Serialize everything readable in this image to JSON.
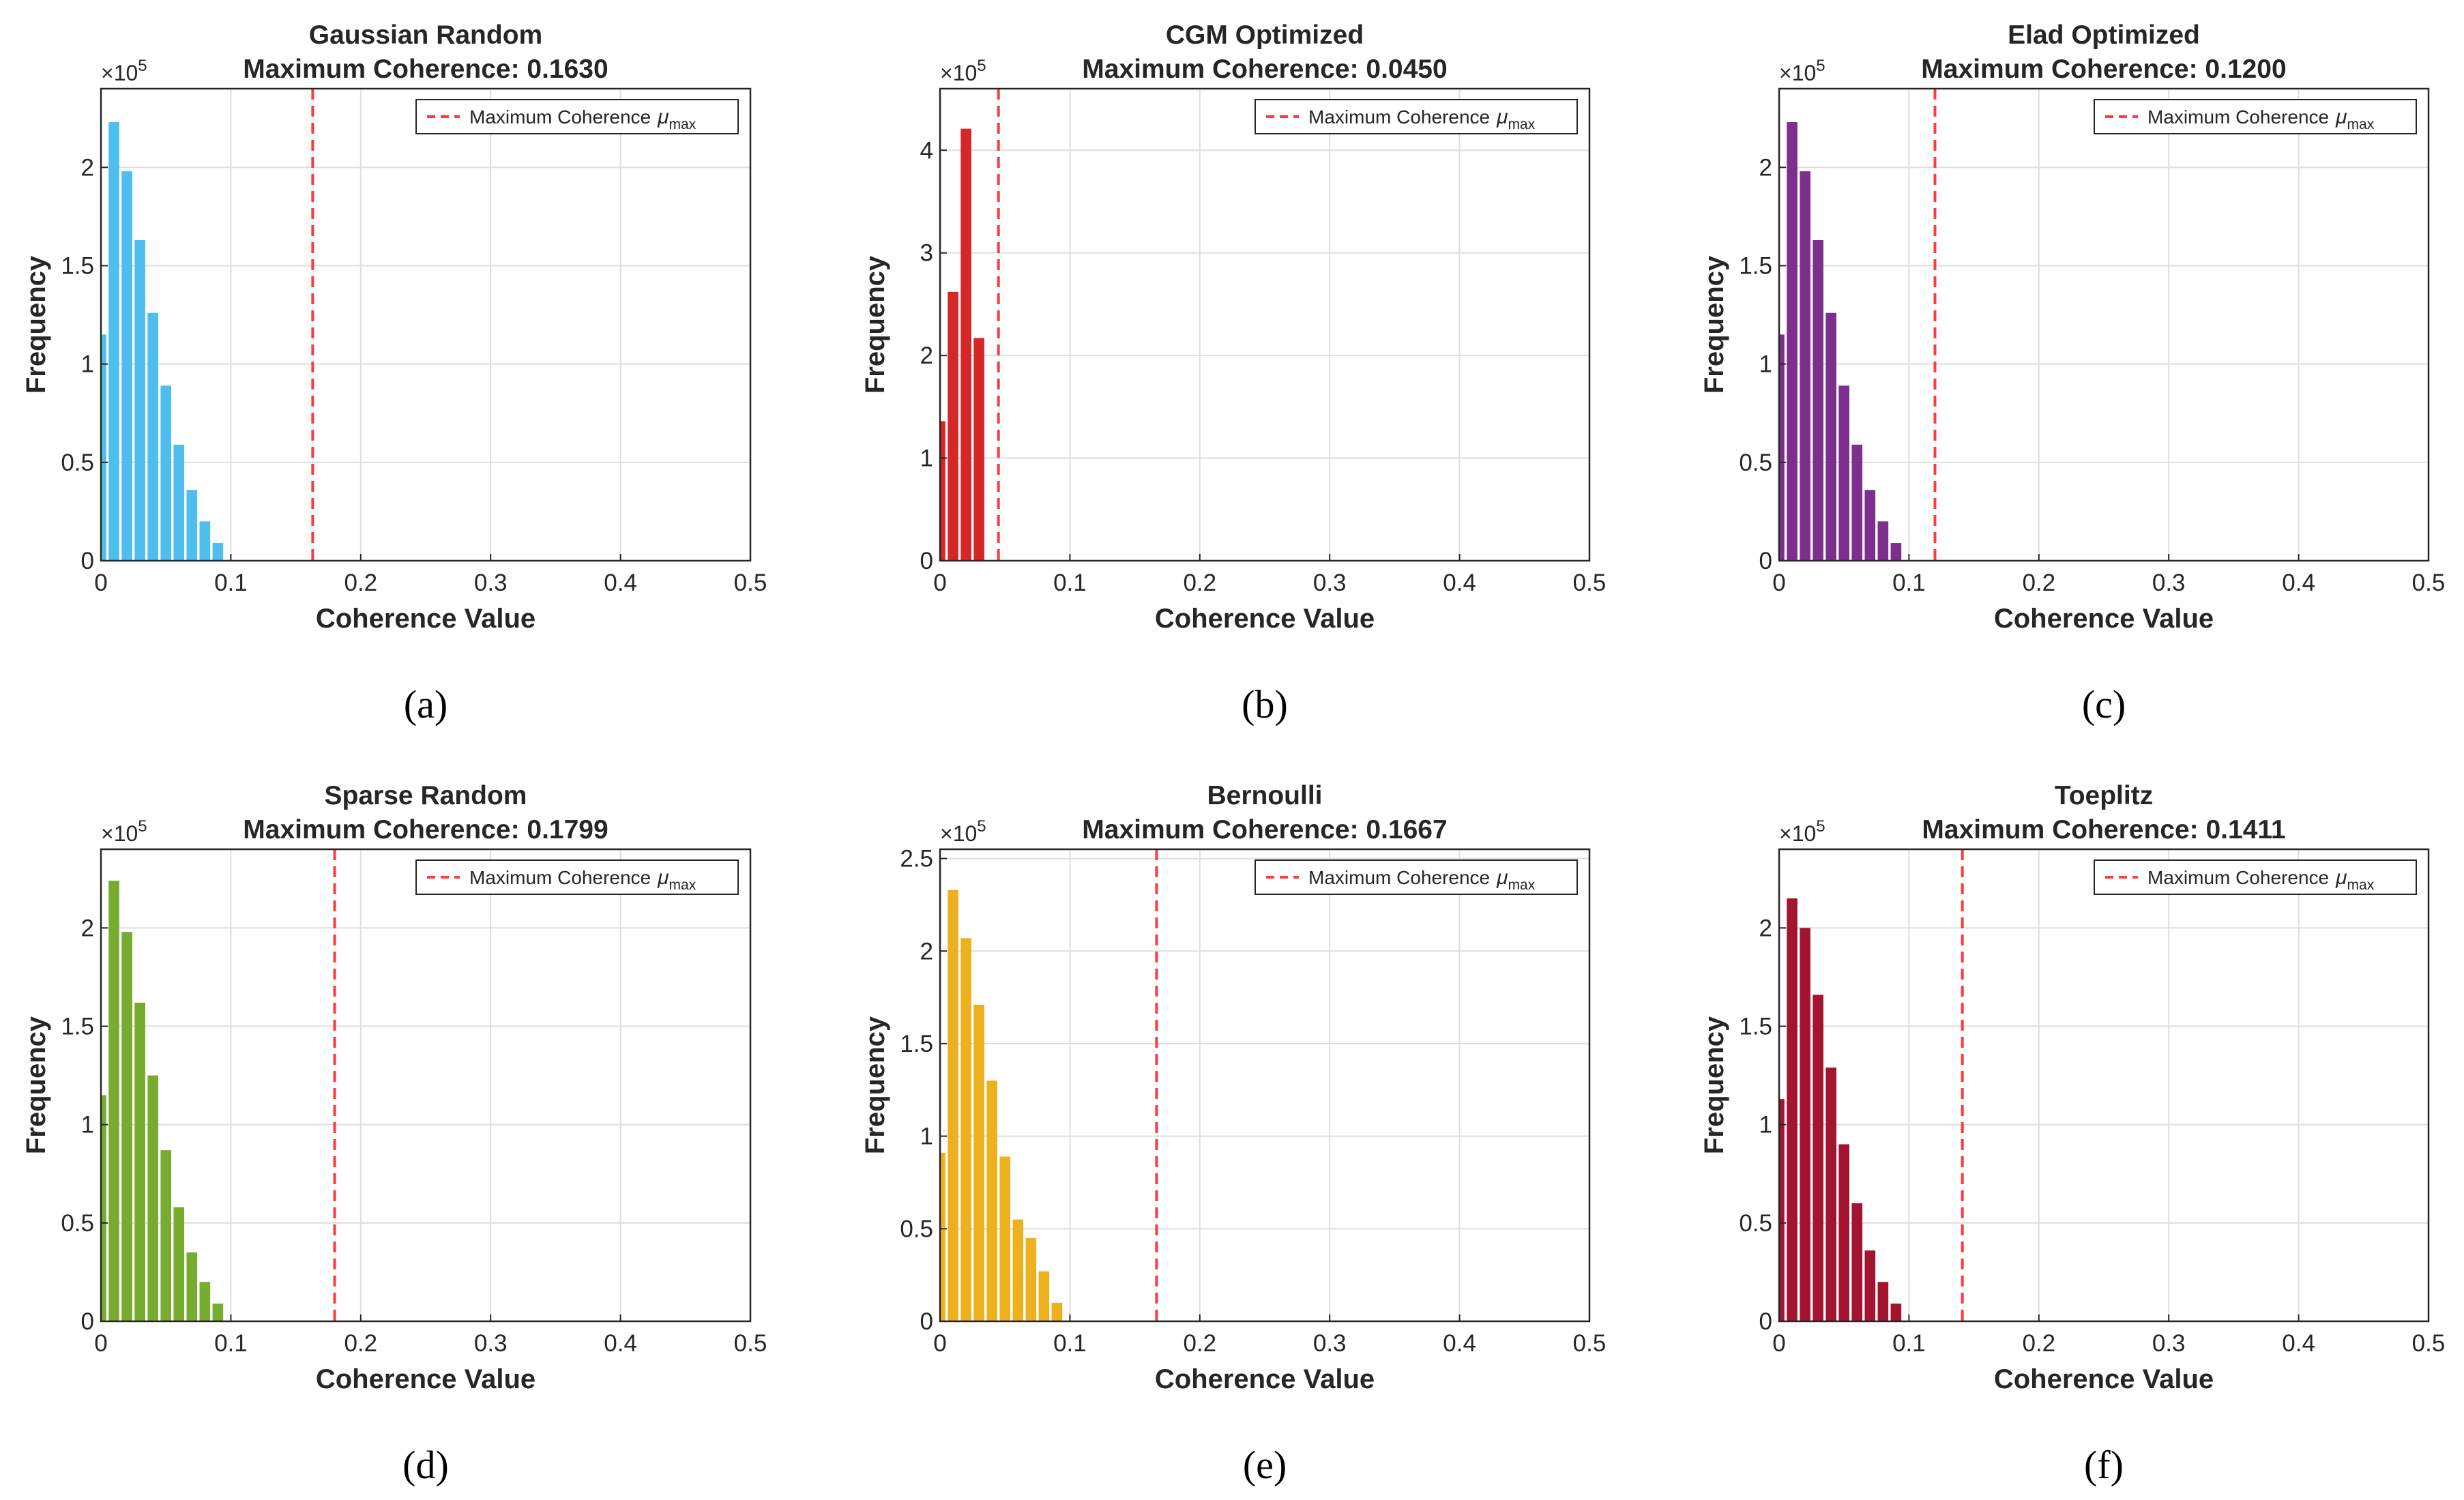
{
  "chart_data": [
    {
      "type": "bar",
      "title": "Gaussian Random",
      "subtitle": "Maximum Coherence: 0.1630",
      "xlabel": "Coherence Value",
      "ylabel": "Frequency",
      "y_exponent": "×10",
      "y_exponent_power": "5",
      "xlim": [
        0,
        0.5
      ],
      "ylim": [
        0,
        2.4
      ],
      "xticks": [
        0,
        0.1,
        0.2,
        0.3,
        0.4,
        0.5
      ],
      "xtick_labels": [
        "0",
        "0.1",
        "0.2",
        "0.3",
        "0.4",
        "0.5"
      ],
      "yticks": [
        0,
        0.5,
        1,
        1.5,
        2
      ],
      "ytick_labels": [
        "0",
        "0.5",
        "1",
        "1.5",
        "2"
      ],
      "bin_width": 0.01,
      "bin_centers": [
        0.0,
        0.01,
        0.02,
        0.03,
        0.04,
        0.05,
        0.06,
        0.07,
        0.08,
        0.09
      ],
      "values": [
        1.15,
        2.23,
        1.98,
        1.63,
        1.26,
        0.89,
        0.59,
        0.36,
        0.2,
        0.09
      ],
      "color": "#4DBEEE",
      "max_coherence": 0.163,
      "legend": "Maximum Coherence μmax",
      "legend_main": "Maximum  Coherence",
      "legend_mu": "μ",
      "legend_sub": "max",
      "legend_loc": "top-right",
      "grid": true,
      "caption": "(a)"
    },
    {
      "type": "bar",
      "title": "CGM Optimized",
      "subtitle": "Maximum Coherence: 0.0450",
      "xlabel": "Coherence Value",
      "ylabel": "Frequency",
      "y_exponent": "×10",
      "y_exponent_power": "5",
      "xlim": [
        0,
        0.5
      ],
      "ylim": [
        0,
        4.6
      ],
      "xticks": [
        0,
        0.1,
        0.2,
        0.3,
        0.4,
        0.5
      ],
      "xtick_labels": [
        "0",
        "0.1",
        "0.2",
        "0.3",
        "0.4",
        "0.5"
      ],
      "yticks": [
        0,
        1,
        2,
        3,
        4
      ],
      "ytick_labels": [
        "0",
        "1",
        "2",
        "3",
        "4"
      ],
      "bin_width": 0.01,
      "bin_centers": [
        0.0,
        0.01,
        0.02,
        0.03
      ],
      "values": [
        1.36,
        2.62,
        4.21,
        2.17
      ],
      "color": "#D62728",
      "max_coherence": 0.045,
      "legend": "Maximum Coherence μmax",
      "legend_main": "Maximum  Coherence",
      "legend_mu": "μ",
      "legend_sub": "max",
      "legend_loc": "top-right",
      "grid": true,
      "caption": "(b)"
    },
    {
      "type": "bar",
      "title": "Elad Optimized",
      "subtitle": "Maximum Coherence: 0.1200",
      "xlabel": "Coherence Value",
      "ylabel": "Frequency",
      "y_exponent": "×10",
      "y_exponent_power": "5",
      "xlim": [
        0,
        0.5
      ],
      "ylim": [
        0,
        2.4
      ],
      "xticks": [
        0,
        0.1,
        0.2,
        0.3,
        0.4,
        0.5
      ],
      "xtick_labels": [
        "0",
        "0.1",
        "0.2",
        "0.3",
        "0.4",
        "0.5"
      ],
      "yticks": [
        0,
        0.5,
        1,
        1.5,
        2
      ],
      "ytick_labels": [
        "0",
        "0.5",
        "1",
        "1.5",
        "2"
      ],
      "bin_width": 0.01,
      "bin_centers": [
        0.0,
        0.01,
        0.02,
        0.03,
        0.04,
        0.05,
        0.06,
        0.07,
        0.08,
        0.09
      ],
      "values": [
        1.15,
        2.23,
        1.98,
        1.63,
        1.26,
        0.89,
        0.59,
        0.36,
        0.2,
        0.09
      ],
      "color": "#7E2F8E",
      "max_coherence": 0.12,
      "legend": "Maximum Coherence μmax",
      "legend_main": "Maximum  Coherence",
      "legend_mu": "μ",
      "legend_sub": "max",
      "legend_loc": "top-right",
      "grid": true,
      "caption": "(c)"
    },
    {
      "type": "bar",
      "title": "Sparse Random",
      "subtitle": "Maximum Coherence: 0.1799",
      "xlabel": "Coherence Value",
      "ylabel": "Frequency",
      "y_exponent": "×10",
      "y_exponent_power": "5",
      "xlim": [
        0,
        0.5
      ],
      "ylim": [
        0,
        2.4
      ],
      "xticks": [
        0,
        0.1,
        0.2,
        0.3,
        0.4,
        0.5
      ],
      "xtick_labels": [
        "0",
        "0.1",
        "0.2",
        "0.3",
        "0.4",
        "0.5"
      ],
      "yticks": [
        0,
        0.5,
        1,
        1.5,
        2
      ],
      "ytick_labels": [
        "0",
        "0.5",
        "1",
        "1.5",
        "2"
      ],
      "bin_width": 0.01,
      "bin_centers": [
        0.0,
        0.01,
        0.02,
        0.03,
        0.04,
        0.05,
        0.06,
        0.07,
        0.08,
        0.09
      ],
      "values": [
        1.15,
        2.24,
        1.98,
        1.62,
        1.25,
        0.87,
        0.58,
        0.35,
        0.2,
        0.09
      ],
      "color": "#77AC30",
      "max_coherence": 0.1799,
      "legend": "Maximum Coherence μmax",
      "legend_main": "Maximum  Coherence",
      "legend_mu": "μ",
      "legend_sub": "max",
      "legend_loc": "top-right",
      "grid": true,
      "caption": "(d)"
    },
    {
      "type": "bar",
      "title": "Bernoulli",
      "subtitle": "Maximum Coherence: 0.1667",
      "xlabel": "Coherence Value",
      "ylabel": "Frequency",
      "y_exponent": "×10",
      "y_exponent_power": "5",
      "xlim": [
        0,
        0.5
      ],
      "ylim": [
        0,
        2.55
      ],
      "xticks": [
        0,
        0.1,
        0.2,
        0.3,
        0.4,
        0.5
      ],
      "xtick_labels": [
        "0",
        "0.1",
        "0.2",
        "0.3",
        "0.4",
        "0.5"
      ],
      "yticks": [
        0,
        0.5,
        1,
        1.5,
        2,
        2.5
      ],
      "ytick_labels": [
        "0",
        "0.5",
        "1",
        "1.5",
        "2",
        "2.5"
      ],
      "bin_width": 0.01,
      "bin_centers": [
        0.0,
        0.01,
        0.02,
        0.03,
        0.04,
        0.05,
        0.06,
        0.07,
        0.08,
        0.09
      ],
      "values": [
        0.91,
        2.33,
        2.07,
        1.71,
        1.3,
        0.89,
        0.55,
        0.45,
        0.27,
        0.1
      ],
      "color": "#EDB120",
      "max_coherence": 0.1667,
      "legend": "Maximum Coherence μmax",
      "legend_main": "Maximum  Coherence",
      "legend_mu": "μ",
      "legend_sub": "max",
      "legend_loc": "top-right",
      "grid": true,
      "caption": "(e)"
    },
    {
      "type": "bar",
      "title": "Toeplitz",
      "subtitle": "Maximum Coherence: 0.1411",
      "xlabel": "Coherence Value",
      "ylabel": "Frequency",
      "y_exponent": "×10",
      "y_exponent_power": "5",
      "xlim": [
        0,
        0.5
      ],
      "ylim": [
        0,
        2.4
      ],
      "xticks": [
        0,
        0.1,
        0.2,
        0.3,
        0.4,
        0.5
      ],
      "xtick_labels": [
        "0",
        "0.1",
        "0.2",
        "0.3",
        "0.4",
        "0.5"
      ],
      "yticks": [
        0,
        0.5,
        1,
        1.5,
        2
      ],
      "ytick_labels": [
        "0",
        "0.5",
        "1",
        "1.5",
        "2"
      ],
      "bin_width": 0.01,
      "bin_centers": [
        0.0,
        0.01,
        0.02,
        0.03,
        0.04,
        0.05,
        0.06,
        0.07,
        0.08,
        0.09
      ],
      "values": [
        1.13,
        2.15,
        2.0,
        1.66,
        1.29,
        0.9,
        0.6,
        0.36,
        0.2,
        0.09
      ],
      "color": "#A2142F",
      "max_coherence": 0.1411,
      "legend": "Maximum Coherence μmax",
      "legend_main": "Maximum  Coherence",
      "legend_mu": "μ",
      "legend_sub": "max",
      "legend_loc": "top-right",
      "grid": true,
      "caption": "(f)"
    }
  ],
  "style": {
    "max_line_color": "#FF3B3B",
    "grid_color": "#DEDEDE",
    "axis_color": "#262626"
  }
}
